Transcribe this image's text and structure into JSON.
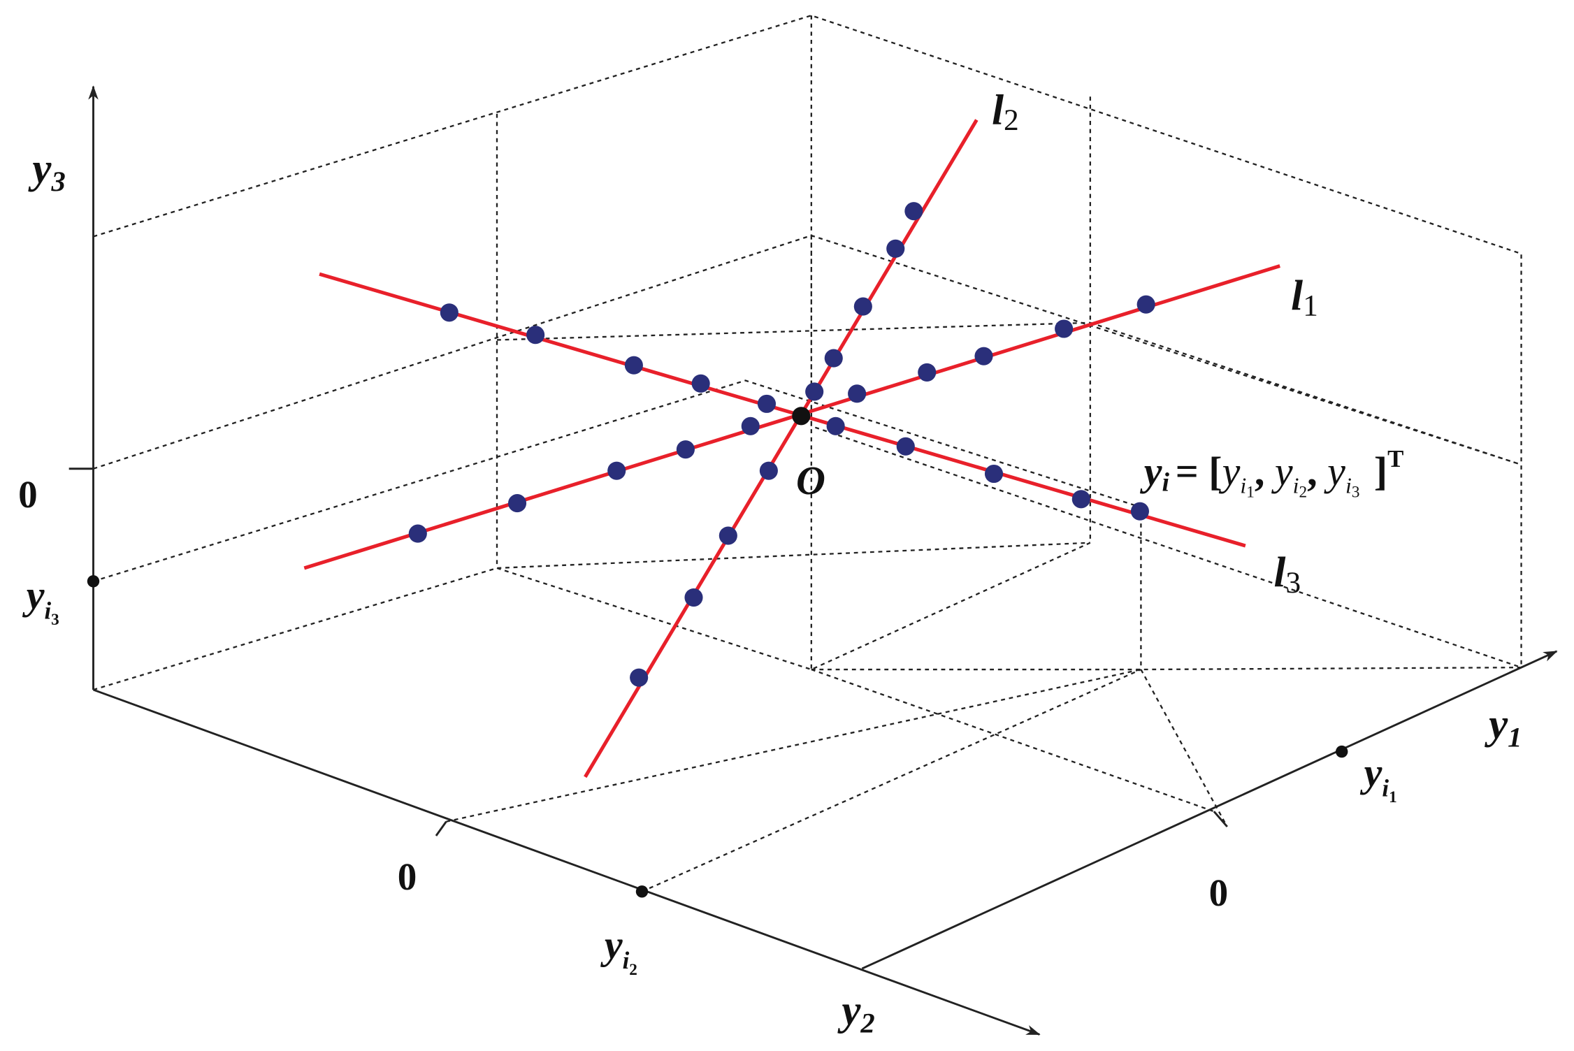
{
  "axes": [
    {
      "name": "y",
      "sub": "3"
    },
    {
      "name": "y",
      "sub": "2"
    },
    {
      "name": "y",
      "sub": "1"
    }
  ],
  "zero_labels": [
    "0",
    "0",
    "0"
  ],
  "projections": [
    {
      "name": "y",
      "sub": "i",
      "subsub": "3"
    },
    {
      "name": "y",
      "sub": "i",
      "subsub": "2"
    },
    {
      "name": "y",
      "sub": "i",
      "subsub": "1"
    }
  ],
  "lines": [
    {
      "name": "l",
      "sub": "1"
    },
    {
      "name": "l",
      "sub": "2"
    },
    {
      "name": "l",
      "sub": "3"
    }
  ],
  "origin": "O",
  "equation": {
    "lhs": {
      "name": "y",
      "sub": "i"
    },
    "open": "= [",
    "terms": [
      {
        "name": "y",
        "sub": "i",
        "subsub": "1"
      },
      {
        "name": "y",
        "sub": "i",
        "subsub": "2"
      },
      {
        "name": "y",
        "sub": "i",
        "subsub": "3"
      }
    ],
    "sep": ",",
    "close": "]",
    "sup": "T"
  }
}
